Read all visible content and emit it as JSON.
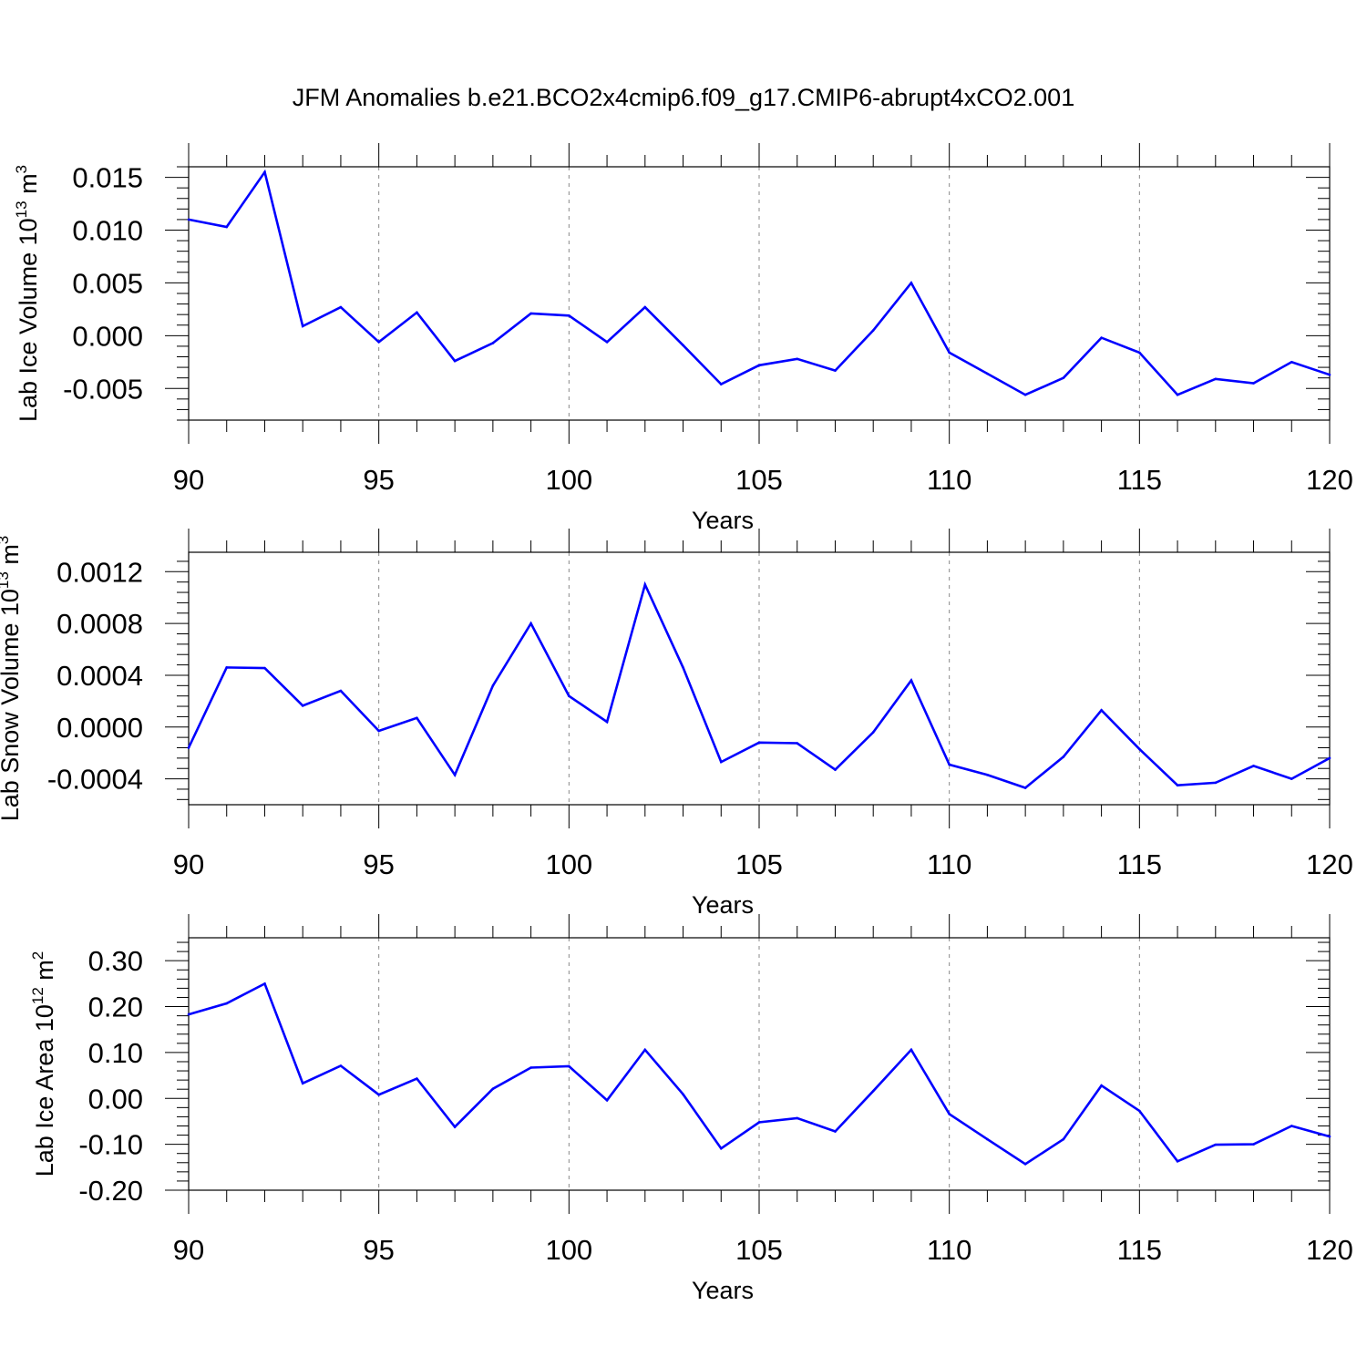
{
  "figure": {
    "title": "JFM Anomalies b.e21.BCO2x4cmip6.f09_g17.CMIP6-abrupt4xCO2.001"
  },
  "colors": {
    "line": "#0000ff",
    "axis": "#000000",
    "grid": "#888888"
  },
  "chart_data": [
    {
      "type": "line",
      "xlabel": "Years",
      "ylabel": {
        "main": "Lab Ice Volume 10",
        "sup1": "13",
        "mid": " m",
        "sup2": "3"
      },
      "xlim": [
        90,
        120
      ],
      "ylim": [
        -0.008,
        0.016
      ],
      "xticks": [
        90,
        95,
        100,
        105,
        110,
        115,
        120
      ],
      "xtick_labels": [
        "90",
        "95",
        "100",
        "105",
        "110",
        "115",
        "120"
      ],
      "yticks": [
        -0.005,
        0.0,
        0.005,
        0.01,
        0.015
      ],
      "ytick_labels": [
        "-0.005",
        "0.000",
        "0.005",
        "0.010",
        "0.015"
      ],
      "grid": "vertical dashed at 95, 100, 105, 110, 115",
      "series": [
        {
          "x": [
            90,
            91,
            92,
            93,
            94,
            95,
            96,
            97,
            98,
            99,
            100,
            101,
            102,
            103,
            104,
            105,
            106,
            107,
            108,
            109,
            110,
            111,
            112,
            113,
            114,
            115,
            116,
            117,
            118,
            119,
            120
          ],
          "values": [
            0.011,
            0.0103,
            0.0155,
            0.0009,
            0.0027,
            -0.0006,
            0.0022,
            -0.0024,
            -0.0007,
            0.0021,
            0.0019,
            -0.0006,
            0.0027,
            -0.0009,
            -0.0046,
            -0.0028,
            -0.0022,
            -0.0033,
            0.0005,
            0.005,
            -0.0016,
            -0.0036,
            -0.0056,
            -0.004,
            -0.0002,
            -0.0016,
            -0.0056,
            -0.0041,
            -0.0045,
            -0.0025,
            -0.0037
          ]
        }
      ]
    },
    {
      "type": "line",
      "xlabel": "Years",
      "ylabel": {
        "main": "Lab Snow Volume 10",
        "sup1": "13",
        "mid": " m",
        "sup2": "3"
      },
      "xlim": [
        90,
        120
      ],
      "ylim": [
        -0.0006,
        0.00135
      ],
      "xticks": [
        90,
        95,
        100,
        105,
        110,
        115,
        120
      ],
      "xtick_labels": [
        "90",
        "95",
        "100",
        "105",
        "110",
        "115",
        "120"
      ],
      "yticks": [
        -0.0004,
        0.0,
        0.0004,
        0.0008,
        0.0012
      ],
      "ytick_labels": [
        "-0.0004",
        "0.0000",
        "0.0004",
        "0.0008",
        "0.0012"
      ],
      "grid": "vertical dashed at 95, 100, 105, 110, 115",
      "series": [
        {
          "x": [
            90,
            91,
            92,
            93,
            94,
            95,
            96,
            97,
            98,
            99,
            100,
            101,
            102,
            103,
            104,
            105,
            106,
            107,
            108,
            109,
            110,
            111,
            112,
            113,
            114,
            115,
            116,
            117,
            118,
            119,
            120
          ],
          "values": [
            -0.00016,
            0.00046,
            0.000455,
            0.000165,
            0.00028,
            -3e-05,
            7e-05,
            -0.00037,
            0.00032,
            0.0008,
            0.00024,
            4e-05,
            0.0011,
            0.00046,
            -0.00027,
            -0.00012,
            -0.000125,
            -0.00033,
            -4e-05,
            0.00036,
            -0.00029,
            -0.00037,
            -0.00047,
            -0.00023,
            0.00013,
            -0.00017,
            -0.00045,
            -0.00043,
            -0.0003,
            -0.0004,
            -0.00024
          ]
        }
      ]
    },
    {
      "type": "line",
      "xlabel": "Years",
      "ylabel": {
        "main": "Lab Ice Area 10",
        "sup1": "12",
        "mid": " m",
        "sup2": "2"
      },
      "xlim": [
        90,
        120
      ],
      "ylim": [
        -0.2,
        0.35
      ],
      "xticks": [
        90,
        95,
        100,
        105,
        110,
        115,
        120
      ],
      "xtick_labels": [
        "90",
        "95",
        "100",
        "105",
        "110",
        "115",
        "120"
      ],
      "yticks": [
        -0.2,
        -0.1,
        0.0,
        0.1,
        0.2,
        0.3
      ],
      "ytick_labels": [
        "-0.20",
        "-0.10",
        "0.00",
        "0.10",
        "0.20",
        "0.30"
      ],
      "grid": "vertical dashed at 95, 100, 105, 110, 115",
      "series": [
        {
          "x": [
            90,
            91,
            92,
            93,
            94,
            95,
            96,
            97,
            98,
            99,
            100,
            101,
            102,
            103,
            104,
            105,
            106,
            107,
            108,
            109,
            110,
            111,
            112,
            113,
            114,
            115,
            116,
            117,
            118,
            119,
            120
          ],
          "values": [
            0.183,
            0.207,
            0.25,
            0.033,
            0.071,
            0.008,
            0.043,
            -0.062,
            0.021,
            0.067,
            0.07,
            -0.004,
            0.106,
            0.009,
            -0.109,
            -0.052,
            -0.043,
            -0.072,
            0.016,
            0.106,
            -0.034,
            -0.089,
            -0.143,
            -0.089,
            0.028,
            -0.027,
            -0.137,
            -0.101,
            -0.1,
            -0.06,
            -0.083
          ]
        }
      ]
    }
  ]
}
